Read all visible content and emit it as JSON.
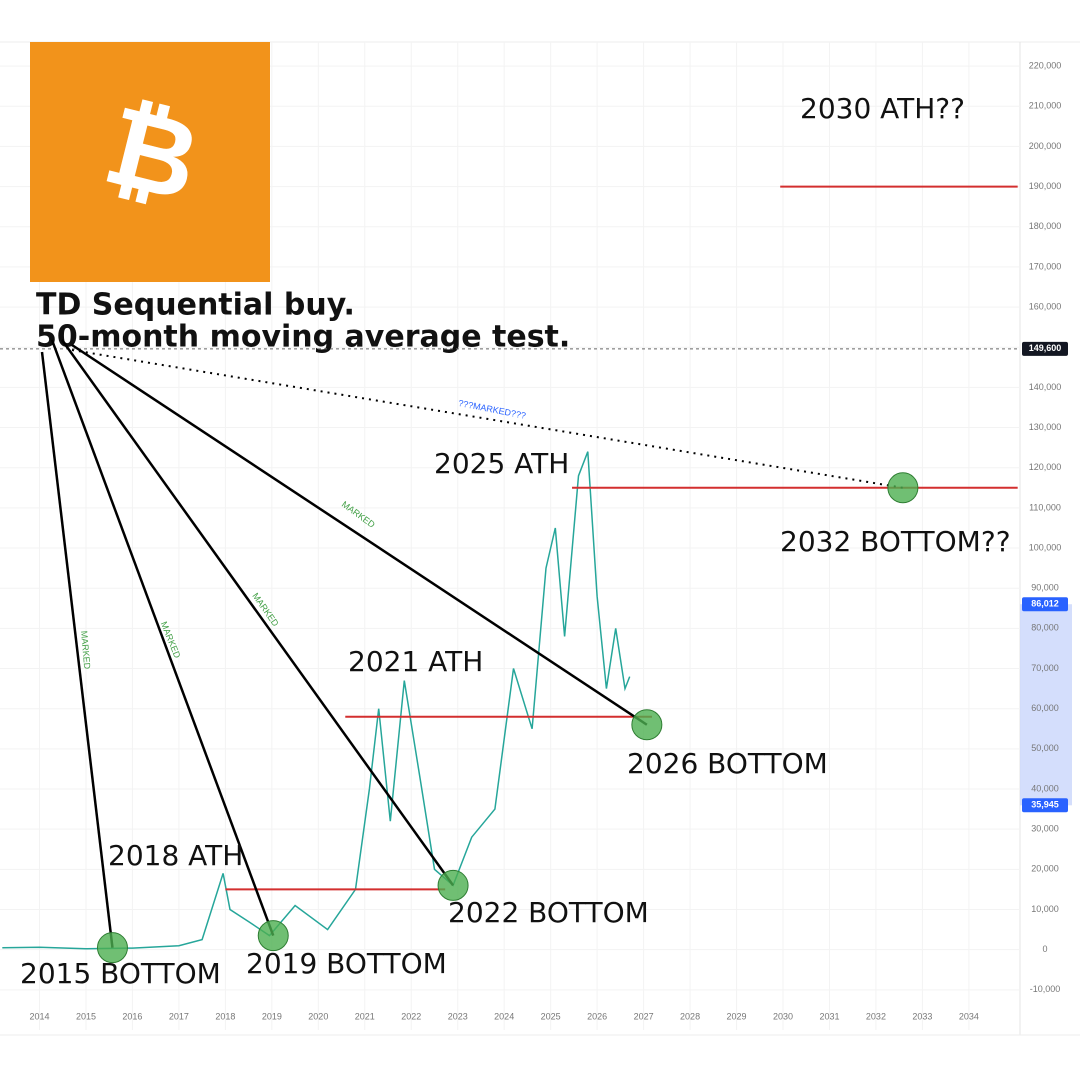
{
  "logo": "₿",
  "chart_data": {
    "type": "line",
    "notes": [
      "TD Sequential buy.",
      "50-month moving average test."
    ],
    "x": [
      2013.2,
      2014,
      2015,
      2016,
      2017,
      2017.5,
      2017.95,
      2018.1,
      2018.5,
      2018.95,
      2019.5,
      2020.2,
      2020.8,
      2021.1,
      2021.3,
      2021.55,
      2021.85,
      2022.2,
      2022.5,
      2022.9,
      2023.3,
      2023.8,
      2024.2,
      2024.6,
      2024.9,
      2025.1,
      2025.3,
      2025.6,
      2025.8,
      2026.0,
      2026.2,
      2026.4,
      2026.6,
      2026.7
    ],
    "values": [
      500,
      600,
      250,
      400,
      1000,
      2500,
      19000,
      10000,
      7000,
      3500,
      11000,
      5000,
      15000,
      40000,
      60000,
      32000,
      67000,
      42000,
      20000,
      16000,
      28000,
      35000,
      70000,
      55000,
      95000,
      105000,
      78000,
      118000,
      124000,
      88000,
      65000,
      80000,
      65000,
      68000
    ],
    "color": "#26a69a",
    "xlim": [
      2013.15,
      2035.1
    ],
    "xticks": [
      2014,
      2015,
      2016,
      2017,
      2018,
      2019,
      2020,
      2021,
      2022,
      2023,
      2024,
      2025,
      2026,
      2027,
      2028,
      2029,
      2030,
      2031,
      2032,
      2033,
      2034
    ],
    "ylim": [
      -20000,
      226000
    ],
    "yticks": [
      {
        "value": -10000,
        "label": "-10,000"
      },
      0,
      {
        "value": 10000,
        "label": "10,000"
      },
      {
        "value": 20000,
        "label": "20,000"
      },
      {
        "value": 30000,
        "label": "30,000"
      },
      {
        "value": 40000,
        "label": "40,000"
      },
      {
        "value": 50000,
        "label": "50,000"
      },
      {
        "value": 60000,
        "label": "60,000"
      },
      {
        "value": 70000,
        "label": "70,000"
      },
      {
        "value": 80000,
        "label": "80,000"
      },
      {
        "value": 90000,
        "label": "90,000"
      },
      {
        "value": 100000,
        "label": "100,000"
      },
      {
        "value": 110000,
        "label": "110,000"
      },
      {
        "value": 120000,
        "label": "120,000"
      },
      {
        "value": 130000,
        "label": "130,000"
      },
      {
        "value": 140000,
        "label": "140,000"
      },
      {
        "value": 150000,
        "label": "150,000"
      },
      {
        "value": 160000,
        "label": "160,000"
      },
      {
        "value": 170000,
        "label": "170,000"
      },
      {
        "value": 180000,
        "label": "180,000"
      },
      {
        "value": 190000,
        "label": "190,000"
      },
      {
        "value": 200000,
        "label": "200,000"
      },
      {
        "value": 210000,
        "label": "210,000"
      },
      {
        "value": 220000,
        "label": "220,000"
      }
    ],
    "price_tags": [
      {
        "value": 149600,
        "label": "149,600"
      },
      {
        "value": 86012,
        "label": "86,012"
      },
      {
        "value": 35945,
        "label": "35,945"
      }
    ],
    "levels": {
      "values": [
        15000,
        58000,
        115000,
        190000
      ],
      "x_start": [
        2018,
        2020.58,
        2025.46,
        2029.94
      ],
      "x_end": [
        2022.73,
        2027.18,
        2035.05,
        2035.05
      ]
    },
    "markers": {
      "x": [
        2015.57,
        2019.03,
        2022.9,
        2027.07,
        2032.58
      ],
      "values": [
        500,
        3500,
        16000,
        56000,
        115000
      ]
    },
    "labels": [
      "2018 ATH",
      "2021 ATH",
      "2025 ATH",
      "2030 ATH??",
      "2015 BOTTOM",
      "2019 BOTTOM",
      "2022 BOTTOM",
      "2026 BOTTOM",
      "2032 BOTTOM??"
    ],
    "line_labels": [
      "MARKED",
      "MARKED",
      "MARKED",
      "MARKED",
      "???MARKED???"
    ]
  }
}
